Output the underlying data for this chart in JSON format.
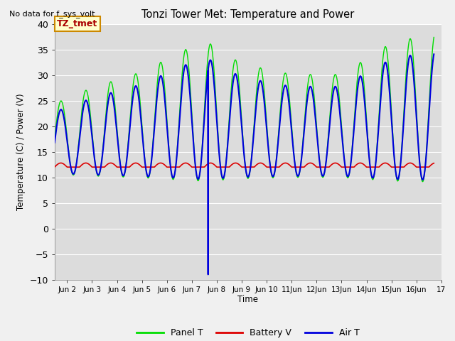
{
  "title": "Tonzi Tower Met: Temperature and Power",
  "ylabel": "Temperature (C) / Power (V)",
  "xlabel": "Time",
  "ylim": [
    -10,
    40
  ],
  "yticks": [
    -10,
    -5,
    0,
    5,
    10,
    15,
    20,
    25,
    30,
    35,
    40
  ],
  "background_color": "#dcdcdc",
  "no_data_text": "No data for f_sys_volt",
  "annotation_text": "TZ_tmet",
  "annotation_bg": "#ffffcc",
  "annotation_border": "#cc8800",
  "panel_t_color": "#00dd00",
  "battery_v_color": "#dd0000",
  "air_t_color": "#0000dd",
  "panel_t_lw": 1.0,
  "battery_v_lw": 1.2,
  "air_t_lw": 1.5,
  "legend_labels": [
    "Panel T",
    "Battery V",
    "Air T"
  ],
  "legend_colors": [
    "#00dd00",
    "#dd0000",
    "#0000dd"
  ],
  "x_tick_labels": [
    "Jun 2",
    "Jun 3",
    "Jun 4",
    "Jun 5",
    "Jun 6",
    "Jun 7",
    "Jun 8",
    "Jun 9",
    "Jun 10",
    "11Jun",
    "12Jun",
    "13Jun",
    "14Jun",
    "15Jun",
    "16Jun",
    "17"
  ],
  "xlim": [
    1.5,
    16.7
  ],
  "grid_color": "#ffffff"
}
